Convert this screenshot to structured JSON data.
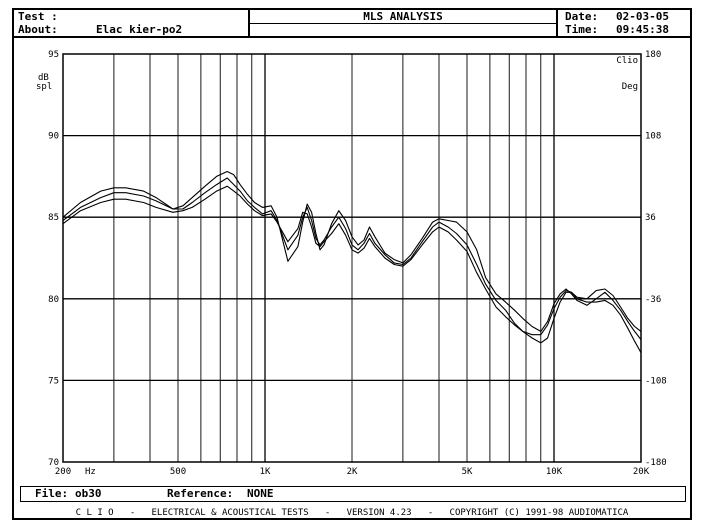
{
  "header": {
    "test_label": "Test :",
    "title": "MLS ANALYSIS",
    "about_label": "About:",
    "about_value": "Elac kier-po2",
    "date_label": "Date:",
    "date_value": "02-03-05",
    "time_label": "Time:",
    "time_value": "09:45:38"
  },
  "footer": {
    "file_label": "File:",
    "file_value": "ob30",
    "reference_label": "Reference:",
    "reference_value": "NONE",
    "banner": "C L I O   -   ELECTRICAL & ACOUSTICAL TESTS   -   VERSION 4.23   -   COPYRIGHT (C) 1991-98 AUDIOMATICA"
  },
  "chart_data": {
    "type": "line",
    "xscale": "log",
    "xlim": [
      200,
      20000
    ],
    "x_ticks": [
      {
        "value": 200,
        "label": "200"
      },
      {
        "value": 500,
        "label": "500"
      },
      {
        "value": 1000,
        "label": "1K"
      },
      {
        "value": 2000,
        "label": "2K"
      },
      {
        "value": 5000,
        "label": "5K"
      },
      {
        "value": 10000,
        "label": "10K"
      },
      {
        "value": 20000,
        "label": "20K"
      }
    ],
    "x_unit": "Hz",
    "ylim": [
      70,
      95
    ],
    "y_ticks": [
      70,
      75,
      80,
      85,
      90,
      95
    ],
    "ylabel": "dB spl",
    "y2lim": [
      -180,
      180
    ],
    "y2_ticks": [
      -180,
      -108,
      -36,
      36,
      108,
      180
    ],
    "y2label": "Deg",
    "corner_label": "Clio",
    "grid": true,
    "series": [
      {
        "x": [
          200,
          230,
          270,
          300,
          330,
          380,
          420,
          480,
          520,
          560,
          620,
          680,
          740,
          780,
          820,
          870,
          920,
          980,
          1050,
          1100,
          1200,
          1300,
          1350,
          1400,
          1450,
          1500,
          1550,
          1600,
          1700,
          1800,
          1900,
          2000,
          2100,
          2200,
          2300,
          2400,
          2600,
          2800,
          3000,
          3200,
          3500,
          3800,
          4000,
          4300,
          4600,
          5000,
          5400,
          5800,
          6300,
          6800,
          7300,
          7800,
          8400,
          9000,
          9500,
          10000,
          10500,
          11000,
          11500,
          12000,
          13000,
          14000,
          15000,
          16000,
          17000,
          18000,
          19000,
          20000
        ],
        "y": [
          84.8,
          85.6,
          86.2,
          86.5,
          86.5,
          86.3,
          86.0,
          85.5,
          85.5,
          85.9,
          86.5,
          87.0,
          87.4,
          87.0,
          86.6,
          86.0,
          85.6,
          85.2,
          85.4,
          84.8,
          83.0,
          83.9,
          85.0,
          85.6,
          84.8,
          83.7,
          83.3,
          83.6,
          84.4,
          85.0,
          84.3,
          83.3,
          83.0,
          83.4,
          84.0,
          83.4,
          82.7,
          82.2,
          82.1,
          82.5,
          83.5,
          84.4,
          84.7,
          84.4,
          84.0,
          83.3,
          82.1,
          80.9,
          79.9,
          79.3,
          78.5,
          78.0,
          77.6,
          77.3,
          77.6,
          78.8,
          79.8,
          80.4,
          80.4,
          80.0,
          79.8,
          79.8,
          79.9,
          79.6,
          79.0,
          78.2,
          77.4,
          76.7
        ]
      },
      {
        "x": [
          200,
          230,
          270,
          300,
          330,
          380,
          420,
          480,
          520,
          560,
          620,
          680,
          740,
          780,
          820,
          870,
          920,
          980,
          1050,
          1100,
          1200,
          1300,
          1350,
          1400,
          1450,
          1500,
          1550,
          1600,
          1700,
          1800,
          1900,
          2000,
          2100,
          2200,
          2300,
          2400,
          2600,
          2800,
          3000,
          3200,
          3500,
          3800,
          4000,
          4300,
          4600,
          5000,
          5400,
          5800,
          6300,
          6800,
          7300,
          7800,
          8400,
          9000,
          9500,
          10000,
          10500,
          11000,
          11500,
          12000,
          13000,
          14000,
          15000,
          16000,
          17000,
          18000,
          19000,
          20000
        ],
        "y": [
          85.0,
          85.9,
          86.6,
          86.8,
          86.8,
          86.6,
          86.2,
          85.5,
          85.7,
          86.2,
          86.9,
          87.5,
          87.8,
          87.6,
          87.0,
          86.4,
          85.9,
          85.6,
          85.7,
          85.0,
          82.3,
          83.2,
          84.7,
          85.8,
          85.3,
          84.0,
          83.0,
          83.3,
          84.6,
          85.4,
          84.8,
          83.8,
          83.3,
          83.6,
          84.4,
          83.8,
          82.8,
          82.4,
          82.2,
          82.7,
          83.7,
          84.7,
          84.9,
          84.8,
          84.7,
          84.1,
          83.0,
          81.3,
          80.3,
          79.8,
          79.3,
          78.8,
          78.3,
          78.0,
          78.6,
          79.7,
          80.3,
          80.6,
          80.3,
          79.9,
          79.6,
          80.0,
          80.4,
          79.9,
          79.3,
          78.6,
          78.0,
          77.5
        ]
      },
      {
        "x": [
          200,
          230,
          270,
          300,
          330,
          380,
          420,
          480,
          520,
          560,
          620,
          680,
          740,
          780,
          820,
          870,
          920,
          980,
          1050,
          1100,
          1200,
          1300,
          1350,
          1400,
          1450,
          1500,
          1550,
          1600,
          1700,
          1800,
          1900,
          2000,
          2100,
          2200,
          2300,
          2400,
          2600,
          2800,
          3000,
          3200,
          3500,
          3800,
          4000,
          4300,
          4600,
          5000,
          5400,
          5800,
          6300,
          6800,
          7300,
          7800,
          8400,
          9000,
          9500,
          10000,
          10500,
          11000,
          11500,
          12000,
          13000,
          14000,
          15000,
          16000,
          17000,
          18000,
          19000,
          20000
        ],
        "y": [
          84.6,
          85.4,
          85.9,
          86.1,
          86.1,
          85.9,
          85.6,
          85.3,
          85.4,
          85.6,
          86.1,
          86.6,
          86.9,
          86.6,
          86.3,
          85.8,
          85.4,
          85.1,
          85.2,
          84.7,
          83.5,
          84.3,
          85.3,
          85.2,
          84.4,
          83.4,
          83.2,
          83.5,
          84.0,
          84.6,
          83.9,
          83.0,
          82.8,
          83.1,
          83.7,
          83.2,
          82.5,
          82.1,
          82.0,
          82.4,
          83.3,
          84.1,
          84.4,
          84.1,
          83.6,
          82.9,
          81.6,
          80.6,
          79.5,
          78.9,
          78.4,
          78.0,
          77.8,
          77.8,
          78.4,
          79.4,
          80.1,
          80.5,
          80.4,
          80.1,
          80.0,
          80.5,
          80.6,
          80.2,
          79.5,
          78.8,
          78.3,
          78.0
        ]
      }
    ]
  }
}
